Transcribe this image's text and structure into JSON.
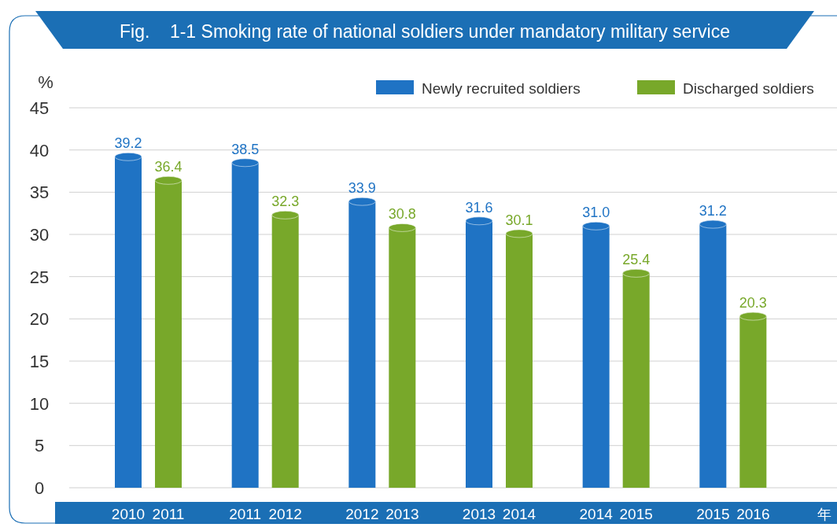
{
  "chart_data": {
    "type": "bar",
    "title": "Fig.    1-1 Smoking rate of national soldiers under mandatory military service",
    "ylabel": "%",
    "xlabel": "年",
    "categories": [
      "2010",
      "2011",
      "2011",
      "2012",
      "2012",
      "2013",
      "2013",
      "2014",
      "2014",
      "2015",
      "2015",
      "2016"
    ],
    "series": [
      {
        "name": "Newly recruited soldiers",
        "color": "#1f73c4",
        "values": [
          39.2,
          null,
          38.5,
          null,
          33.9,
          null,
          31.6,
          null,
          31.0,
          null,
          31.2,
          null
        ],
        "value_labels": [
          "39.2",
          null,
          "38.5",
          null,
          "33.9",
          null,
          "31.6",
          null,
          "31.0",
          null,
          "31.2",
          null
        ]
      },
      {
        "name": "Discharged soldiers",
        "color": "#78a82a",
        "values": [
          null,
          36.4,
          null,
          32.3,
          null,
          30.8,
          null,
          30.1,
          null,
          25.4,
          null,
          20.3
        ],
        "value_labels": [
          null,
          "36.4",
          null,
          "32.3",
          null,
          "30.8",
          null,
          "30.1",
          null,
          "25.4",
          null,
          "20.3"
        ]
      }
    ],
    "ylim": [
      0,
      45
    ],
    "yticks": [
      0,
      5,
      10,
      15,
      20,
      25,
      30,
      35,
      40,
      45
    ],
    "grid": "y",
    "legend": "top right"
  }
}
